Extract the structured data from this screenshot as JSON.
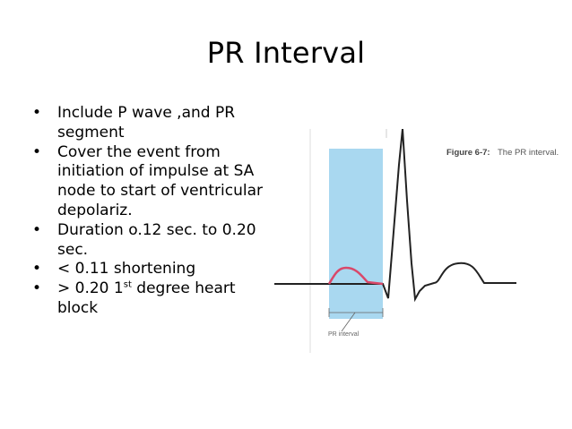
{
  "slide": {
    "title": "PR Interval",
    "bullets": [
      {
        "text": "Include P wave ,and PR segment"
      },
      {
        "text": "Cover the event from initiation of impulse at SA node to start of ventricular depolariz."
      },
      {
        "text": "Duration o.12 sec. to 0.20 sec."
      },
      {
        "text": "< 0.11 shortening"
      },
      {
        "pre": "> 0.20 1",
        "sup": "st",
        "post": " degree heart block"
      }
    ],
    "bullet_glyph": "•"
  },
  "figure": {
    "caption_bold": "Figure 6-7:",
    "caption_rest": "The PR interval.",
    "interval_label": "PR interval",
    "colors": {
      "highlight": "#a9d8f0",
      "p_wave": "#d9486a",
      "trace": "#222222"
    }
  }
}
